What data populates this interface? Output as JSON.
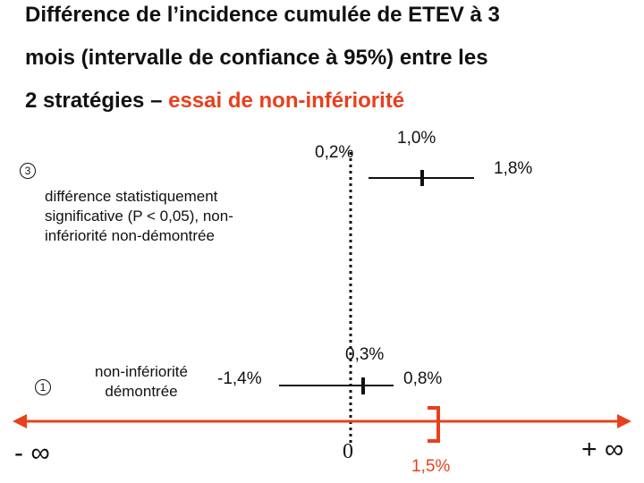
{
  "title": {
    "line1": "Différence de l’incidence cumulée de ETEV à 3",
    "line2": "mois (intervalle de confiance à 95%) entre les",
    "line3_prefix": "2 stratégies – ",
    "line3_highlight": "essai de non-infériorité"
  },
  "colors": {
    "highlight": "#e8401c",
    "text": "#111111",
    "bracket": "#e8401c"
  },
  "scenario3": {
    "marker": "3",
    "lower": "0,2%",
    "point": "1,0%",
    "upper": "1,8%",
    "note_line1": "différence statistiquement",
    "note_line2": "significative (P < 0,05), non-",
    "note_line3": "infériorité non-démontrée"
  },
  "scenario1": {
    "marker": "1",
    "lower": "-1,4%",
    "point": "0,3%",
    "upper": "0,8%",
    "note_line1": "non-infériorité",
    "note_line2": "démontrée"
  },
  "axis": {
    "minus_infinity": "- ∞",
    "zero": "0",
    "margin": "1,5%",
    "plus_infinity": "+ ∞"
  }
}
